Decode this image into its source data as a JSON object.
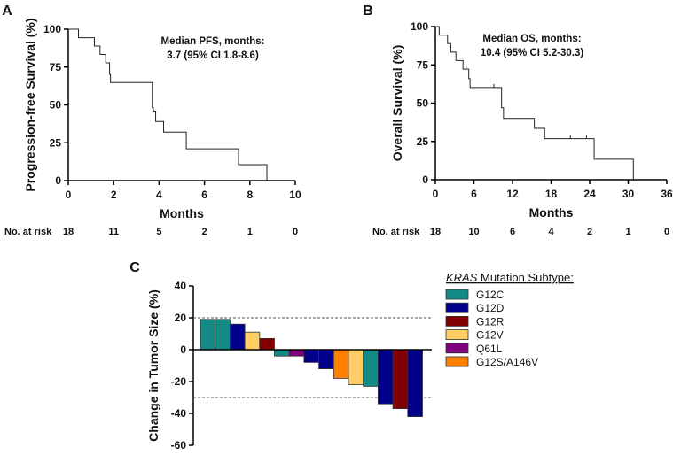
{
  "chart_data": [
    {
      "panel": "A",
      "type": "line",
      "subtype": "kaplan-meier",
      "xlabel": "Months",
      "ylabel": "Progression-free Survival (%)",
      "xlim": [
        0,
        10
      ],
      "ylim": [
        0,
        100
      ],
      "xticks": [
        "0",
        "2",
        "4",
        "6",
        "8",
        "10"
      ],
      "yticks": [
        "0",
        "25",
        "50",
        "75",
        "100"
      ],
      "annotation": [
        "Median PFS, months:",
        "3.7 (95% CI 1.8-8.6)"
      ],
      "steps": [
        [
          0,
          100
        ],
        [
          0.45,
          94.4
        ],
        [
          1.15,
          88.9
        ],
        [
          1.4,
          83.3
        ],
        [
          1.65,
          77.8
        ],
        [
          1.82,
          70
        ],
        [
          1.86,
          64.8
        ],
        [
          3.7,
          48
        ],
        [
          3.75,
          46
        ],
        [
          3.85,
          39
        ],
        [
          4.2,
          32
        ],
        [
          5.2,
          21
        ],
        [
          7.5,
          10.5
        ],
        [
          8.75,
          0
        ]
      ],
      "censored": [
        [
          4.2,
          32
        ]
      ],
      "risk_label": "No. at risk",
      "at_risk": [
        "18",
        "11",
        "5",
        "2",
        "1",
        "0"
      ]
    },
    {
      "panel": "B",
      "type": "line",
      "subtype": "kaplan-meier",
      "xlabel": "Months",
      "ylabel": "Overall Survival (%)",
      "xlim": [
        0,
        36
      ],
      "ylim": [
        0,
        100
      ],
      "xticks": [
        "0",
        "6",
        "12",
        "18",
        "24",
        "30",
        "36"
      ],
      "yticks": [
        "0",
        "25",
        "50",
        "75",
        "100"
      ],
      "annotation": [
        "Median OS, months:",
        "10.4 (95% CI 5.2-30.3)"
      ],
      "steps": [
        [
          0,
          100
        ],
        [
          0.6,
          94.4
        ],
        [
          1.9,
          88.9
        ],
        [
          2.4,
          83.3
        ],
        [
          3.2,
          77.8
        ],
        [
          4.3,
          72.2
        ],
        [
          5.2,
          66
        ],
        [
          5.4,
          60.2
        ],
        [
          10.3,
          47
        ],
        [
          10.6,
          40
        ],
        [
          15.4,
          33.5
        ],
        [
          17,
          26.8
        ],
        [
          24.7,
          13.4
        ],
        [
          30.8,
          0
        ]
      ],
      "censored": [
        [
          4.8,
          72.2
        ],
        [
          9.1,
          60.2
        ],
        [
          21,
          26.8
        ],
        [
          23.5,
          26.8
        ]
      ],
      "risk_label": "No. at risk",
      "at_risk": [
        "18",
        "10",
        "6",
        "4",
        "2",
        "1",
        "0"
      ]
    },
    {
      "panel": "C",
      "type": "bar",
      "subtype": "waterfall",
      "ylabel": "Change in Tumor Size (%)",
      "ylim": [
        -60,
        40
      ],
      "yticks": [
        "40",
        "20",
        "0",
        "-20",
        "-40",
        "-60"
      ],
      "reference_lines": [
        20,
        -30
      ],
      "values": [
        19,
        19,
        16,
        11,
        7,
        -4,
        -4,
        -8,
        -12,
        -18,
        -22,
        -23,
        -34,
        -37,
        -42
      ],
      "groups": [
        "G12C",
        "G12C",
        "G12D",
        "G12V",
        "G12R",
        "G12C",
        "Q61L",
        "G12D",
        "G12D",
        "G12S/A146V",
        "G12V",
        "G12C",
        "G12D",
        "G12R",
        "G12D"
      ],
      "legend": {
        "title_italic": "KRAS",
        "title_rest": " Mutation Subtype:",
        "entries": [
          {
            "label": "G12C",
            "color": "#148a86"
          },
          {
            "label": "G12D",
            "color": "#00008b"
          },
          {
            "label": "G12R",
            "color": "#800000"
          },
          {
            "label": "G12V",
            "color": "#ffcc66"
          },
          {
            "label": "Q61L",
            "color": "#800080"
          },
          {
            "label": "G12S/A146V",
            "color": "#ff8000"
          }
        ]
      }
    }
  ],
  "panel_labels": [
    "A",
    "B",
    "C"
  ]
}
